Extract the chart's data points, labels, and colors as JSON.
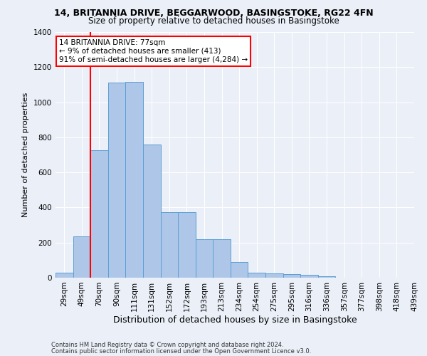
{
  "title1": "14, BRITANNIA DRIVE, BEGGARWOOD, BASINGSTOKE, RG22 4FN",
  "title2": "Size of property relative to detached houses in Basingstoke",
  "xlabel": "Distribution of detached houses by size in Basingstoke",
  "ylabel": "Number of detached properties",
  "footer1": "Contains HM Land Registry data © Crown copyright and database right 2024.",
  "footer2": "Contains public sector information licensed under the Open Government Licence v3.0.",
  "annotation_line1": "14 BRITANNIA DRIVE: 77sqm",
  "annotation_line2": "← 9% of detached houses are smaller (413)",
  "annotation_line3": "91% of semi-detached houses are larger (4,284) →",
  "bar_values": [
    30,
    235,
    725,
    1110,
    1115,
    760,
    375,
    375,
    220,
    220,
    90,
    30,
    25,
    20,
    15,
    10,
    0,
    0,
    0,
    0
  ],
  "bin_labels": [
    "29sqm",
    "49sqm",
    "70sqm",
    "90sqm",
    "111sqm",
    "131sqm",
    "152sqm",
    "172sqm",
    "193sqm",
    "213sqm",
    "234sqm",
    "254sqm",
    "275sqm",
    "295sqm",
    "316sqm",
    "336sqm",
    "357sqm",
    "377sqm",
    "398sqm",
    "418sqm",
    "439sqm"
  ],
  "bar_color": "#aec6e8",
  "bar_edge_color": "#5a9fd4",
  "vline_color": "red",
  "vline_x": 1.5,
  "ylim": [
    0,
    1400
  ],
  "yticks": [
    0,
    200,
    400,
    600,
    800,
    1000,
    1200,
    1400
  ],
  "bg_color": "#eaeff8",
  "grid_color": "#ffffff",
  "annotation_box_color": "#ffffff",
  "annotation_box_edge": "red",
  "title1_fontsize": 9,
  "title2_fontsize": 8.5,
  "ylabel_fontsize": 8,
  "xlabel_fontsize": 9,
  "tick_fontsize": 7.5,
  "footer_fontsize": 6,
  "annot_fontsize": 7.5
}
